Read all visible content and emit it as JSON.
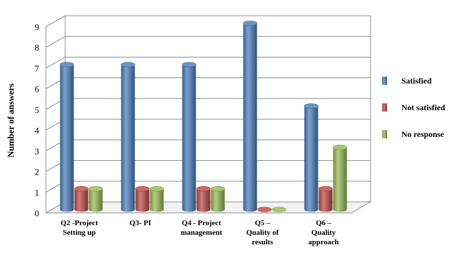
{
  "chart_data": {
    "type": "bar",
    "title": "",
    "xlabel": "",
    "ylabel": "Number of answers",
    "ylim": [
      0,
      9
    ],
    "yticks": [
      0,
      1,
      2,
      3,
      4,
      5,
      6,
      7,
      8,
      9
    ],
    "grid": true,
    "legend_position": "right",
    "style": "3d-cylinder",
    "categories": [
      [
        "Q2 -Project",
        "Setting up"
      ],
      [
        "Q3- PI"
      ],
      [
        "Q4 - Project",
        "management"
      ],
      [
        "Q5 –",
        "Quality of",
        "results"
      ],
      [
        "Q6 –",
        "Quality",
        "approach"
      ]
    ],
    "series": [
      {
        "name": "Satisfied",
        "color": "#4a7ebb",
        "values": [
          7,
          7,
          7,
          9,
          5
        ]
      },
      {
        "name": "Not satisfied",
        "color": "#be4b48",
        "values": [
          1,
          1,
          1,
          0,
          1
        ]
      },
      {
        "name": "No response",
        "color": "#98b954",
        "values": [
          1,
          1,
          1,
          0,
          3
        ]
      }
    ]
  }
}
